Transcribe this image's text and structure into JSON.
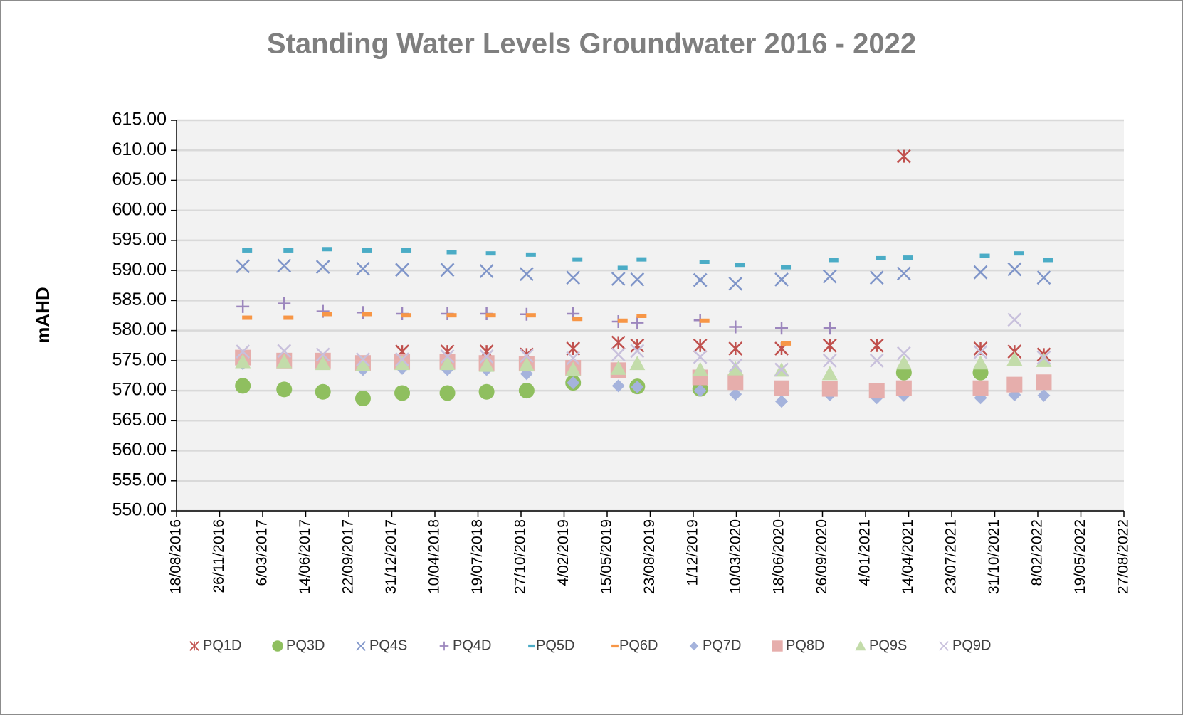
{
  "chart_data": {
    "type": "scatter",
    "title": "Standing Water Levels Groundwater   2016 - 2022",
    "y_label": "mAHD",
    "x": [
      "19/01/2017",
      "25/04/2017",
      "24/07/2017",
      "25/10/2017",
      "24/01/2018",
      "09/05/2018",
      "08/08/2018",
      "09/11/2018",
      "25/02/2019",
      "10/06/2019",
      "24/07/2019",
      "17/12/2019",
      "08/03/2020",
      "23/06/2020",
      "13/10/2020",
      "30/01/2021",
      "03/04/2021",
      "28/09/2021",
      "16/12/2021",
      "22/02/2022"
    ],
    "xlim": [
      "18/08/2016",
      "27/08/2022"
    ],
    "xticks": [
      "18/08/2016",
      "26/11/2016",
      "6/03/2017",
      "14/06/2017",
      "22/09/2017",
      "31/12/2017",
      "10/04/2018",
      "19/07/2018",
      "27/10/2018",
      "4/02/2019",
      "15/05/2019",
      "23/08/2019",
      "1/12/2019",
      "10/03/2020",
      "18/06/2020",
      "26/09/2020",
      "4/01/2021",
      "14/04/2021",
      "23/07/2021",
      "31/10/2021",
      "8/02/2022",
      "19/05/2022",
      "27/08/2022"
    ],
    "ylim": [
      550,
      615
    ],
    "yticks": [
      {
        "value": 550,
        "label": "550.00"
      },
      {
        "value": 555,
        "label": "555.00"
      },
      {
        "value": 560,
        "label": "560.00"
      },
      {
        "value": 565,
        "label": "565.00"
      },
      {
        "value": 570,
        "label": "570.00"
      },
      {
        "value": 575,
        "label": "575.00"
      },
      {
        "value": 580,
        "label": "580.00"
      },
      {
        "value": 585,
        "label": "585.00"
      },
      {
        "value": 590,
        "label": "590.00"
      },
      {
        "value": 595,
        "label": "595.00"
      },
      {
        "value": 600,
        "label": "600.00"
      },
      {
        "value": 605,
        "label": "605.00"
      },
      {
        "value": 610,
        "label": "610.00"
      },
      {
        "value": 615,
        "label": "615.00"
      }
    ],
    "grid": true,
    "legend": "bottom",
    "series": [
      {
        "name": "PQ1D",
        "color": "#c0504d",
        "marker": "asterisk",
        "values": [
          null,
          null,
          null,
          null,
          576.5,
          576.5,
          576.5,
          576,
          577,
          578,
          577.5,
          577.5,
          577,
          577,
          577.5,
          577.5,
          609,
          577,
          576.5,
          576
        ]
      },
      {
        "name": "PQ3D",
        "color": "#8fbf5f",
        "marker": "circle",
        "values": [
          570.8,
          570.2,
          569.8,
          568.7,
          569.6,
          569.6,
          569.8,
          570,
          571.3,
          null,
          570.7,
          570.3,
          null,
          null,
          null,
          null,
          573,
          573,
          null,
          null
        ]
      },
      {
        "name": "PQ4S",
        "color": "#7f95c9",
        "marker": "x",
        "values": [
          590.7,
          590.8,
          590.6,
          590.3,
          590.1,
          590.1,
          589.9,
          589.4,
          588.8,
          588.6,
          588.5,
          588.4,
          587.8,
          588.5,
          589,
          588.8,
          589.5,
          589.7,
          590.2,
          588.8
        ]
      },
      {
        "name": "PQ4D",
        "color": "#9c86bd",
        "marker": "plus",
        "values": [
          584,
          584.5,
          583.2,
          583,
          582.8,
          582.8,
          582.8,
          582.7,
          582.8,
          581.5,
          581.3,
          581.7,
          580.6,
          580.4,
          580.4,
          null,
          null,
          null,
          null,
          null
        ]
      },
      {
        "name": "PQ5D",
        "color": "#4bacc6",
        "marker": "dash",
        "values": [
          591.8,
          591.8,
          592,
          591.8,
          591.8,
          591.5,
          591.3,
          591.1,
          590.3,
          588.9,
          590.3,
          589.9,
          589.4,
          589,
          590.2,
          590.5,
          590.6,
          590.9,
          591.3,
          590.2
        ]
      },
      {
        "name": "PQ6D",
        "color": "#f79646",
        "marker": "dash",
        "values": [
          580.6,
          580.6,
          581.2,
          581.2,
          581,
          581,
          581,
          581,
          580.4,
          580.1,
          580.9,
          580.1,
          null,
          576.3,
          null,
          null,
          null,
          null,
          null,
          null
        ]
      },
      {
        "name": "PQ7D",
        "color": "#a5b3dc",
        "marker": "diamond",
        "values": [
          574.5,
          575,
          574.5,
          573.5,
          573.7,
          573.5,
          573.5,
          572.8,
          571.3,
          570.8,
          570.6,
          570,
          569.4,
          568.2,
          569.3,
          568.8,
          569.2,
          568.8,
          569.3,
          569.2
        ]
      },
      {
        "name": "PQ8D",
        "color": "#e6aeac",
        "marker": "square",
        "values": [
          575.5,
          575,
          575,
          574.6,
          574.8,
          574.8,
          574.6,
          574.5,
          573.8,
          573.4,
          null,
          572.2,
          571.4,
          570.4,
          570.3,
          570,
          570.4,
          570.4,
          571,
          571.4
        ]
      },
      {
        "name": "PQ9S",
        "color": "#c3dcaa",
        "marker": "triangle",
        "values": [
          574.8,
          574.8,
          574.5,
          574.3,
          574.5,
          574.5,
          574.2,
          574.3,
          573.5,
          573.7,
          574.5,
          573.5,
          573.6,
          573.4,
          572.8,
          null,
          574.6,
          574.6,
          575.2,
          575
        ]
      },
      {
        "name": "PQ9D",
        "color": "#c8c0dc",
        "marker": "x",
        "values": [
          576.5,
          576.6,
          576,
          575.2,
          575.2,
          575.7,
          575.7,
          575.8,
          575.4,
          576,
          576.6,
          575.6,
          574.2,
          573.5,
          575,
          575,
          576.2,
          576.4,
          581.8,
          575.5
        ]
      }
    ]
  }
}
